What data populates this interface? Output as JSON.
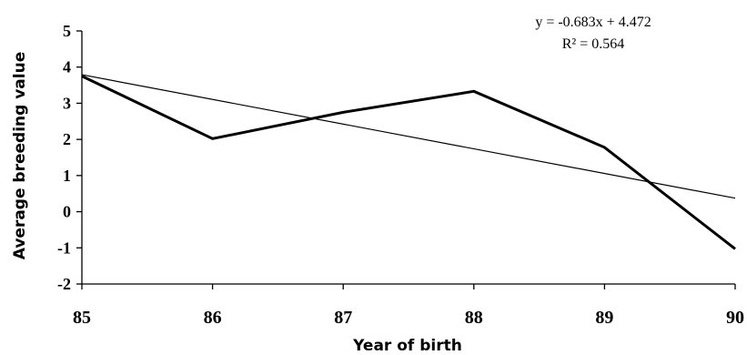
{
  "chart_data": {
    "type": "line",
    "xlabel": "Year of birth",
    "ylabel": "Average breeding value",
    "x": [
      85,
      86,
      87,
      88,
      89,
      90
    ],
    "xlim": [
      85,
      90
    ],
    "ylim": [
      -2,
      5
    ],
    "yticks": [
      -2,
      -1,
      0,
      1,
      2,
      3,
      4,
      5
    ],
    "x_tick_labels": [
      "85",
      "86",
      "87",
      "88",
      "89",
      "90"
    ],
    "y_tick_labels": [
      "-2",
      "-1",
      "0",
      "1",
      "2",
      "3",
      "4",
      "5"
    ],
    "grid": false,
    "series": [
      {
        "values": [
          3.75,
          2.02,
          2.75,
          3.33,
          1.78,
          -1.03
        ],
        "color": "#000000",
        "line": "bold"
      }
    ],
    "trendline": {
      "equation": "y = -0.683x + 4.472",
      "r_squared": "R² = 0.564",
      "slope": -0.683,
      "intercept": 4.472,
      "color": "#000000"
    }
  }
}
